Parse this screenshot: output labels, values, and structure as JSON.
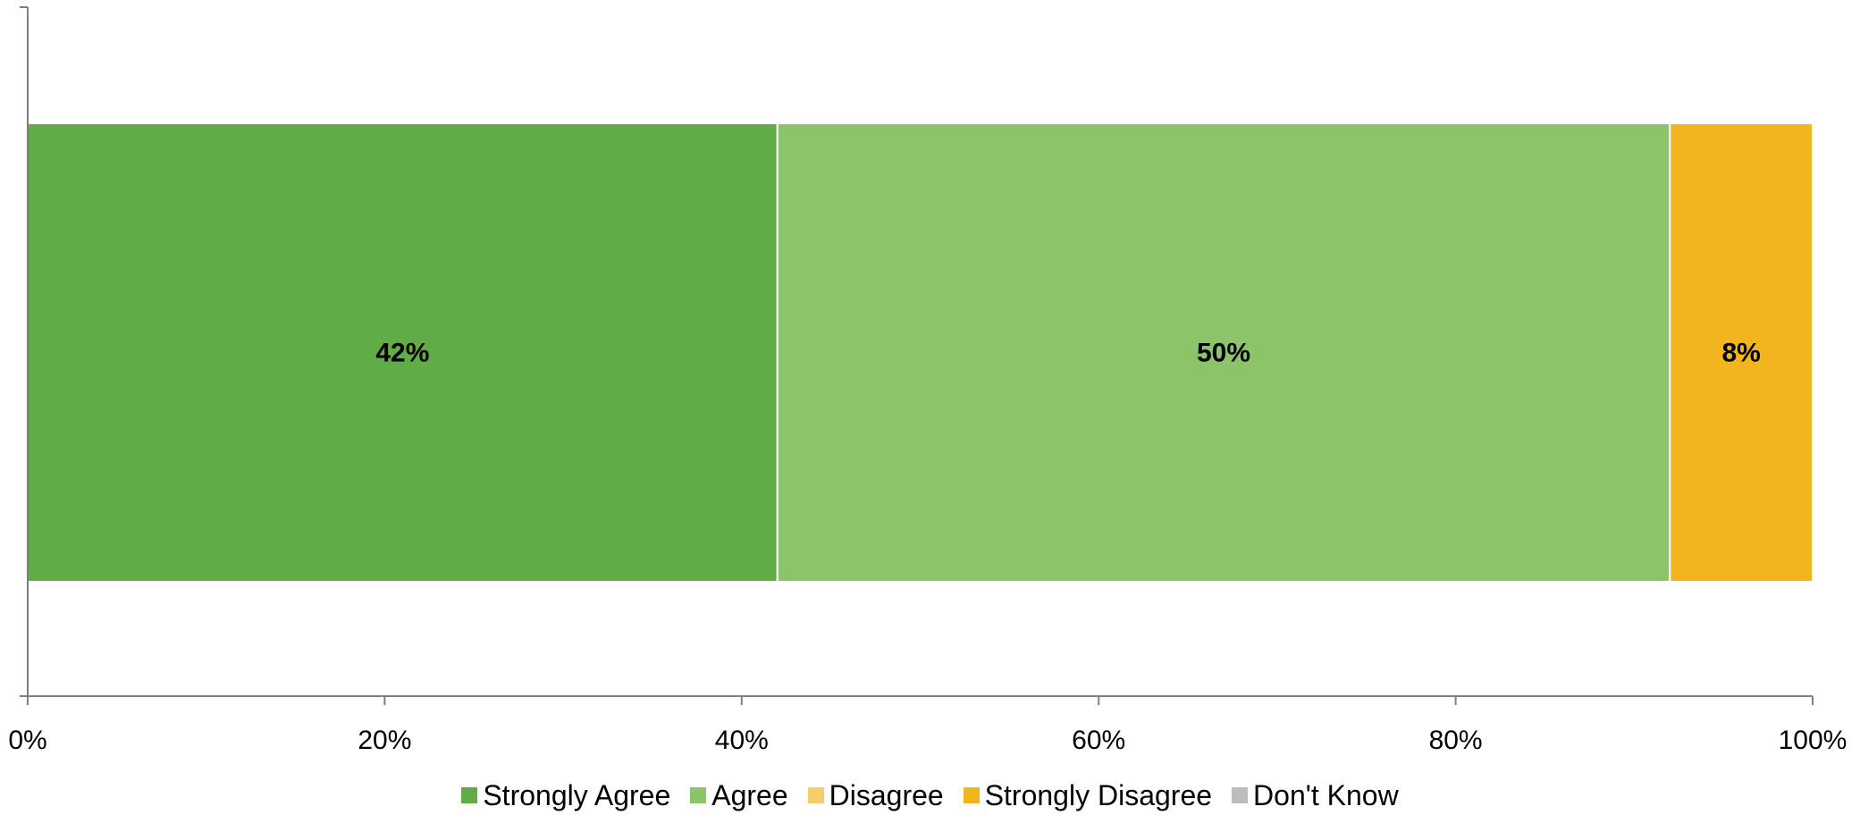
{
  "chart_data": {
    "type": "bar",
    "orientation": "horizontal",
    "stacked": true,
    "percent_stacked": true,
    "categories": [
      ""
    ],
    "series": [
      {
        "name": "Strongly Agree",
        "values": [
          42
        ],
        "color": "#62ac46"
      },
      {
        "name": "Agree",
        "values": [
          50
        ],
        "color": "#8dc46a"
      },
      {
        "name": "Disagree",
        "values": [
          0
        ],
        "color": "#f7cc6a"
      },
      {
        "name": "Strongly Disagree",
        "values": [
          8
        ],
        "color": "#f2b51e"
      },
      {
        "name": "Don't Know",
        "values": [
          0
        ],
        "color": "#bdbdbd"
      }
    ],
    "data_labels": [
      "42%",
      "50%",
      "",
      "8%",
      ""
    ],
    "xlim": [
      0,
      100
    ],
    "x_ticks": [
      0,
      20,
      40,
      60,
      80,
      100
    ],
    "x_tick_labels": [
      "0%",
      "20%",
      "40%",
      "60%",
      "80%",
      "100%"
    ],
    "grid": false,
    "legend_position": "bottom"
  },
  "legend": {
    "items": [
      {
        "label": "Strongly Agree",
        "color": "#62ac46"
      },
      {
        "label": "Agree",
        "color": "#8dc46a"
      },
      {
        "label": "Disagree",
        "color": "#f7cc6a"
      },
      {
        "label": "Strongly Disagree",
        "color": "#f2b51e"
      },
      {
        "label": "Don't Know",
        "color": "#bdbdbd"
      }
    ]
  }
}
